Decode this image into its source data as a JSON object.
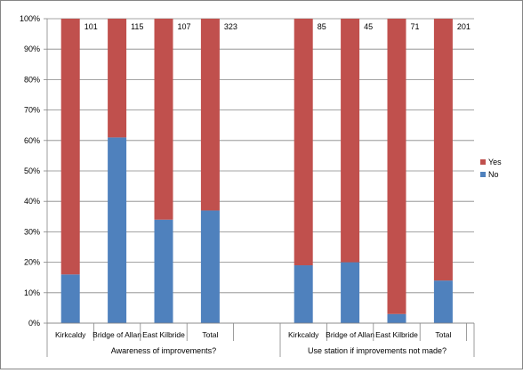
{
  "chart_data": {
    "type": "bar",
    "stacked": "percent",
    "colors": {
      "No": "#4f81bd",
      "Yes": "#c0504d"
    },
    "yticks": [
      "0%",
      "10%",
      "20%",
      "30%",
      "40%",
      "50%",
      "60%",
      "70%",
      "80%",
      "90%",
      "100%"
    ],
    "ylim": [
      0,
      100
    ],
    "groups": [
      {
        "label": "Awareness of improvements?",
        "categories": [
          "Kirkcaldy",
          "Bridge of Allan",
          "East Kilbride",
          "Total"
        ],
        "no": [
          16,
          61,
          34,
          37
        ],
        "yes": [
          84,
          39,
          66,
          63
        ],
        "totals": [
          "101",
          "115",
          "107",
          "323"
        ]
      },
      {
        "label": "Use station if improvements not made?",
        "categories": [
          "Kirkcaldy",
          "Bridge of Allan",
          "East Kilbride",
          "Total"
        ],
        "no": [
          19,
          20,
          3,
          14
        ],
        "yes": [
          81,
          80,
          97,
          86
        ],
        "totals": [
          "85",
          "45",
          "71",
          "201"
        ]
      }
    ],
    "legend": {
      "position": "right",
      "items": [
        "Yes",
        "No"
      ]
    },
    "grid": true
  }
}
